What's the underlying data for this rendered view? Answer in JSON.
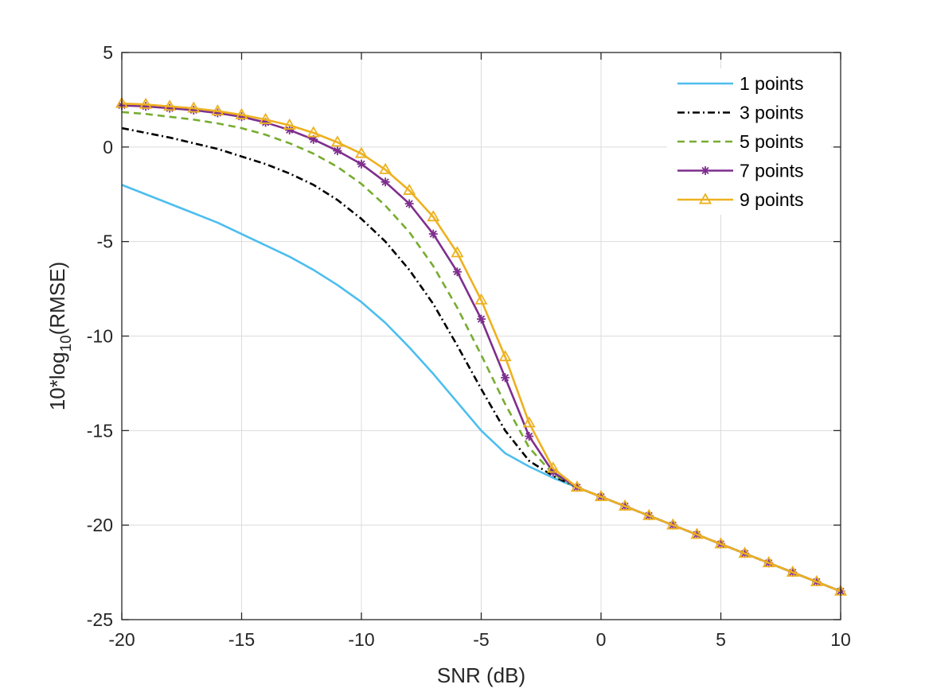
{
  "chart_data": {
    "type": "line",
    "xlabel": "SNR (dB)",
    "ylabel": {
      "prefix": "10*log",
      "subscript": "10",
      "suffix": "(RMSE)"
    },
    "xlim": [
      -20,
      10
    ],
    "ylim": [
      -25,
      5
    ],
    "xticks": [
      -20,
      -15,
      -10,
      -5,
      0,
      5,
      10
    ],
    "yticks": [
      -25,
      -20,
      -15,
      -10,
      -5,
      0,
      5
    ],
    "grid": true,
    "legend_position": "top-right",
    "x": [
      -20,
      -19,
      -18,
      -17,
      -16,
      -15,
      -14,
      -13,
      -12,
      -11,
      -10,
      -9,
      -8,
      -7,
      -6,
      -5,
      -4,
      -3,
      -2,
      -1,
      0,
      1,
      2,
      3,
      4,
      5,
      6,
      7,
      8,
      9,
      10
    ],
    "series": [
      {
        "name": "1 points",
        "color": "#4DBEEE",
        "dash": "solid",
        "marker": "none",
        "values": [
          -2.0,
          -2.5,
          -3.0,
          -3.5,
          -4.0,
          -4.6,
          -5.2,
          -5.8,
          -6.5,
          -7.3,
          -8.2,
          -9.3,
          -10.6,
          -12.0,
          -13.5,
          -15.0,
          -16.2,
          -16.9,
          -17.5,
          -18.0,
          -18.5,
          -19.0,
          -19.5,
          -20.0,
          -20.5,
          -21.0,
          -21.5,
          -22.0,
          -22.5,
          -23.0,
          -23.5
        ]
      },
      {
        "name": "3 points",
        "color": "#000000",
        "dash": "dashdot",
        "marker": "none",
        "values": [
          1.0,
          0.75,
          0.5,
          0.2,
          -0.1,
          -0.5,
          -0.9,
          -1.4,
          -2.0,
          -2.8,
          -3.8,
          -5.0,
          -6.5,
          -8.3,
          -10.5,
          -12.8,
          -15.0,
          -16.6,
          -17.4,
          -18.0,
          -18.5,
          -19.0,
          -19.5,
          -20.0,
          -20.5,
          -21.0,
          -21.5,
          -22.0,
          -22.5,
          -23.0,
          -23.5
        ]
      },
      {
        "name": "5 points",
        "color": "#77AC30",
        "dash": "dashed",
        "marker": "none",
        "values": [
          1.85,
          1.75,
          1.6,
          1.45,
          1.25,
          1.0,
          0.65,
          0.2,
          -0.35,
          -1.05,
          -1.95,
          -3.1,
          -4.5,
          -6.3,
          -8.5,
          -11.0,
          -13.6,
          -15.9,
          -17.3,
          -18.0,
          -18.5,
          -19.0,
          -19.5,
          -20.0,
          -20.5,
          -21.0,
          -21.5,
          -22.0,
          -22.5,
          -23.0,
          -23.5
        ]
      },
      {
        "name": "7 points",
        "color": "#7E2F8E",
        "dash": "solid",
        "marker": "star",
        "values": [
          2.2,
          2.15,
          2.05,
          1.95,
          1.8,
          1.6,
          1.3,
          0.9,
          0.4,
          -0.2,
          -0.9,
          -1.85,
          -3.0,
          -4.6,
          -6.6,
          -9.1,
          -12.2,
          -15.3,
          -17.2,
          -18.0,
          -18.5,
          -19.0,
          -19.5,
          -20.0,
          -20.5,
          -21.0,
          -21.5,
          -22.0,
          -22.5,
          -23.0,
          -23.5
        ]
      },
      {
        "name": "9 points",
        "color": "#EDB120",
        "dash": "solid",
        "marker": "triangle",
        "values": [
          2.3,
          2.25,
          2.15,
          2.05,
          1.9,
          1.7,
          1.45,
          1.15,
          0.75,
          0.25,
          -0.35,
          -1.2,
          -2.3,
          -3.7,
          -5.6,
          -8.1,
          -11.1,
          -14.6,
          -17.0,
          -18.0,
          -18.5,
          -19.0,
          -19.5,
          -20.0,
          -20.5,
          -21.0,
          -21.5,
          -22.0,
          -22.5,
          -23.0,
          -23.5
        ]
      }
    ]
  }
}
